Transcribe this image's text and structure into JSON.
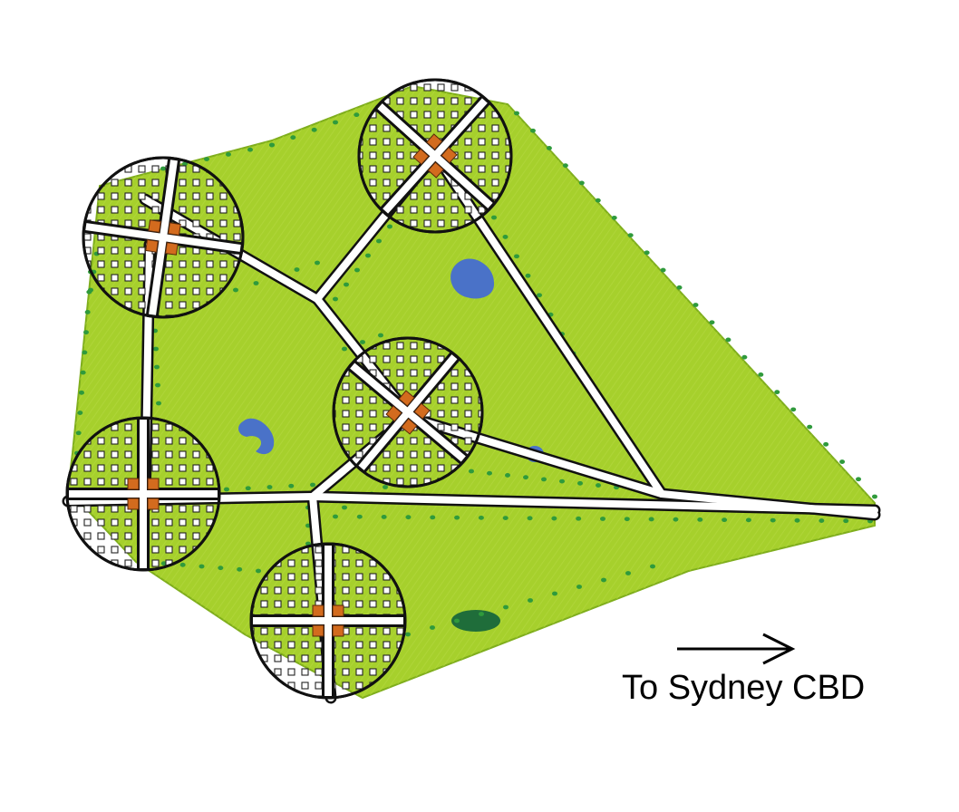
{
  "map": {
    "colors": {
      "green_belt": "#a6d02c",
      "green_belt_light": "#c3e25a",
      "green_dot": "#2f9a3c",
      "water": "#4a72c8",
      "water_dark": "#1f6d3a",
      "road_fill": "#ffffff",
      "outline": "#111111",
      "town_center": "#d36b1e"
    },
    "direction_label": "To Sydney CBD",
    "direction_icon": "right-arrow-icon"
  }
}
